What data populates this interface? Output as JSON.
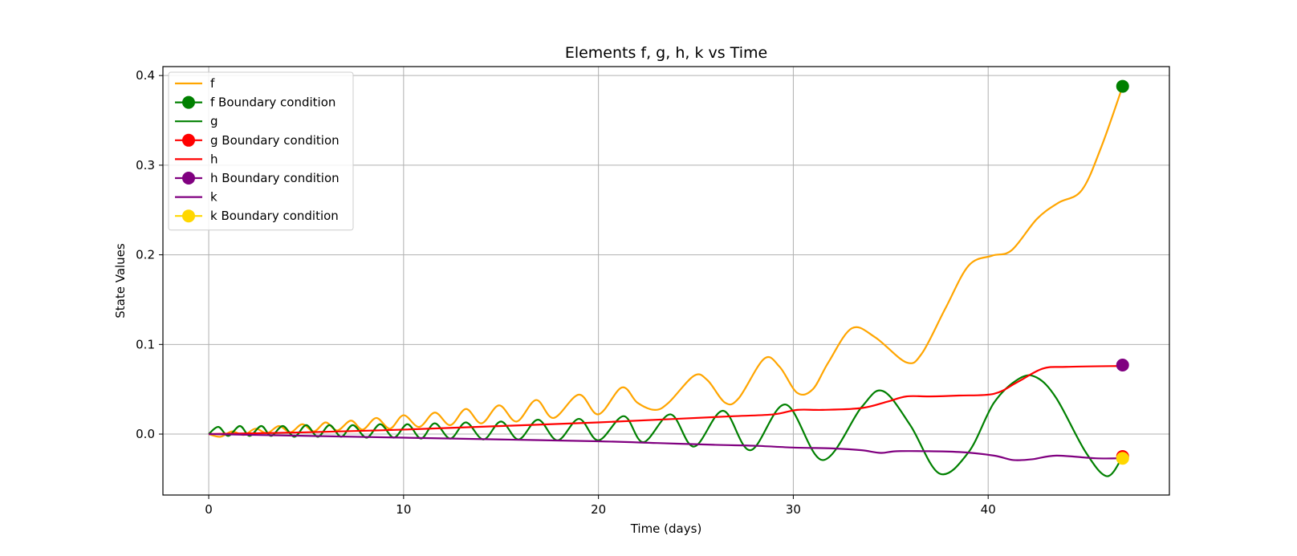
{
  "chart_data": {
    "type": "line",
    "title": "Elements f, g, h, k vs Time",
    "xlabel": "Time (days)",
    "ylabel": "State Values",
    "xlim": [
      -2.35,
      49.3
    ],
    "ylim": [
      -0.068,
      0.41
    ],
    "xticks": [
      0,
      10,
      20,
      30,
      40
    ],
    "xtick_labels": [
      "0",
      "10",
      "20",
      "30",
      "40"
    ],
    "yticks": [
      0.0,
      0.1,
      0.2,
      0.3,
      0.4
    ],
    "ytick_labels": [
      "0.0",
      "0.1",
      "0.2",
      "0.3",
      "0.4"
    ],
    "grid": true,
    "legend_position": "top-left",
    "x_end": 46.9,
    "series": [
      {
        "name": "f",
        "color": "#FFA500",
        "points": [
          [
            0,
            0.0
          ],
          [
            0.6,
            -0.003
          ],
          [
            1.2,
            0.003
          ],
          [
            1.8,
            -0.001
          ],
          [
            2.4,
            0.006
          ],
          [
            3.0,
            0.001
          ],
          [
            3.6,
            0.009
          ],
          [
            4.2,
            0.002
          ],
          [
            4.8,
            0.011
          ],
          [
            5.4,
            0.003
          ],
          [
            6.0,
            0.013
          ],
          [
            6.6,
            0.004
          ],
          [
            7.3,
            0.015
          ],
          [
            7.9,
            0.005
          ],
          [
            8.6,
            0.018
          ],
          [
            9.3,
            0.006
          ],
          [
            10.0,
            0.021
          ],
          [
            10.8,
            0.008
          ],
          [
            11.6,
            0.024
          ],
          [
            12.4,
            0.01
          ],
          [
            13.2,
            0.028
          ],
          [
            14.0,
            0.012
          ],
          [
            14.9,
            0.032
          ],
          [
            15.8,
            0.014
          ],
          [
            16.8,
            0.038
          ],
          [
            17.7,
            0.018
          ],
          [
            19.0,
            0.044
          ],
          [
            20.0,
            0.022
          ],
          [
            21.2,
            0.052
          ],
          [
            22.0,
            0.035
          ],
          [
            22.9,
            0.027
          ],
          [
            23.6,
            0.035
          ],
          [
            24.9,
            0.065
          ],
          [
            25.6,
            0.06
          ],
          [
            26.5,
            0.035
          ],
          [
            27.2,
            0.04
          ],
          [
            28.5,
            0.084
          ],
          [
            29.3,
            0.075
          ],
          [
            30.2,
            0.046
          ],
          [
            31.0,
            0.05
          ],
          [
            31.8,
            0.08
          ],
          [
            33.0,
            0.118
          ],
          [
            34.2,
            0.108
          ],
          [
            35.8,
            0.08
          ],
          [
            36.6,
            0.09
          ],
          [
            37.8,
            0.14
          ],
          [
            39.0,
            0.188
          ],
          [
            40.2,
            0.199
          ],
          [
            41.2,
            0.205
          ],
          [
            42.5,
            0.24
          ],
          [
            43.6,
            0.258
          ],
          [
            44.8,
            0.272
          ],
          [
            45.8,
            0.32
          ],
          [
            46.9,
            0.388
          ]
        ]
      },
      {
        "name": "g",
        "color": "#008000",
        "points": [
          [
            0,
            0.0
          ],
          [
            0.5,
            0.008
          ],
          [
            1.0,
            -0.002
          ],
          [
            1.6,
            0.009
          ],
          [
            2.1,
            -0.002
          ],
          [
            2.7,
            0.009
          ],
          [
            3.2,
            -0.002
          ],
          [
            3.8,
            0.009
          ],
          [
            4.4,
            -0.003
          ],
          [
            5.0,
            0.01
          ],
          [
            5.6,
            -0.003
          ],
          [
            6.2,
            0.01
          ],
          [
            6.8,
            -0.003
          ],
          [
            7.4,
            0.01
          ],
          [
            8.1,
            -0.004
          ],
          [
            8.8,
            0.011
          ],
          [
            9.5,
            -0.004
          ],
          [
            10.2,
            0.011
          ],
          [
            10.9,
            -0.005
          ],
          [
            11.6,
            0.012
          ],
          [
            12.4,
            -0.005
          ],
          [
            13.2,
            0.013
          ],
          [
            14.1,
            -0.006
          ],
          [
            15.0,
            0.014
          ],
          [
            15.9,
            -0.006
          ],
          [
            16.9,
            0.016
          ],
          [
            17.9,
            -0.007
          ],
          [
            19.0,
            0.017
          ],
          [
            20.0,
            -0.007
          ],
          [
            21.3,
            0.02
          ],
          [
            22.3,
            -0.009
          ],
          [
            23.7,
            0.022
          ],
          [
            24.9,
            -0.014
          ],
          [
            26.4,
            0.026
          ],
          [
            27.8,
            -0.018
          ],
          [
            29.6,
            0.033
          ],
          [
            31.5,
            -0.029
          ],
          [
            33.5,
            0.03
          ],
          [
            34.6,
            0.048
          ],
          [
            36.0,
            0.01
          ],
          [
            37.5,
            -0.044
          ],
          [
            39.0,
            -0.02
          ],
          [
            40.3,
            0.035
          ],
          [
            41.6,
            0.062
          ],
          [
            42.5,
            0.063
          ],
          [
            43.5,
            0.04
          ],
          [
            45.0,
            -0.02
          ],
          [
            46.1,
            -0.047
          ],
          [
            46.9,
            -0.025
          ]
        ]
      },
      {
        "name": "h",
        "color": "#FF0000",
        "points": [
          [
            0,
            0.0
          ],
          [
            5,
            0.002
          ],
          [
            10,
            0.005
          ],
          [
            15,
            0.009
          ],
          [
            20,
            0.013
          ],
          [
            24,
            0.017
          ],
          [
            27,
            0.02
          ],
          [
            29,
            0.022
          ],
          [
            30.2,
            0.027
          ],
          [
            31.5,
            0.027
          ],
          [
            33.5,
            0.029
          ],
          [
            34.8,
            0.036
          ],
          [
            35.8,
            0.042
          ],
          [
            37,
            0.042
          ],
          [
            38.5,
            0.043
          ],
          [
            40.3,
            0.045
          ],
          [
            41.5,
            0.058
          ],
          [
            42.8,
            0.073
          ],
          [
            44,
            0.075
          ],
          [
            46.9,
            0.076
          ]
        ]
      },
      {
        "name": "k",
        "color": "#800080",
        "points": [
          [
            0,
            0.0
          ],
          [
            5,
            -0.002
          ],
          [
            10,
            -0.004
          ],
          [
            15,
            -0.006
          ],
          [
            20,
            -0.008
          ],
          [
            23,
            -0.01
          ],
          [
            26,
            -0.012
          ],
          [
            28,
            -0.013
          ],
          [
            30,
            -0.015
          ],
          [
            32,
            -0.016
          ],
          [
            33.5,
            -0.018
          ],
          [
            34.5,
            -0.021
          ],
          [
            35.5,
            -0.019
          ],
          [
            38.5,
            -0.02
          ],
          [
            40.3,
            -0.024
          ],
          [
            41.3,
            -0.029
          ],
          [
            42.3,
            -0.028
          ],
          [
            43.5,
            -0.024
          ],
          [
            45.5,
            -0.027
          ],
          [
            46.9,
            -0.027
          ]
        ]
      }
    ],
    "boundary_markers": [
      {
        "name": "f Boundary condition",
        "x": 46.9,
        "y": 0.388,
        "color": "#008000"
      },
      {
        "name": "g Boundary condition",
        "x": 46.9,
        "y": -0.025,
        "color": "#FF0000"
      },
      {
        "name": "h Boundary condition",
        "x": 46.9,
        "y": 0.077,
        "color": "#800080"
      },
      {
        "name": "k Boundary condition",
        "x": 46.9,
        "y": -0.027,
        "color": "#FFD700"
      }
    ],
    "legend": [
      {
        "label": "f",
        "kind": "line",
        "color": "#FFA500"
      },
      {
        "label": "f Boundary condition",
        "kind": "marker",
        "color": "#008000"
      },
      {
        "label": "g",
        "kind": "line",
        "color": "#008000"
      },
      {
        "label": "g Boundary condition",
        "kind": "marker",
        "color": "#FF0000"
      },
      {
        "label": "h",
        "kind": "line",
        "color": "#FF0000"
      },
      {
        "label": "h Boundary condition",
        "kind": "marker",
        "color": "#800080"
      },
      {
        "label": "k",
        "kind": "line",
        "color": "#800080"
      },
      {
        "label": "k Boundary condition",
        "kind": "marker",
        "color": "#FFD700"
      }
    ]
  }
}
